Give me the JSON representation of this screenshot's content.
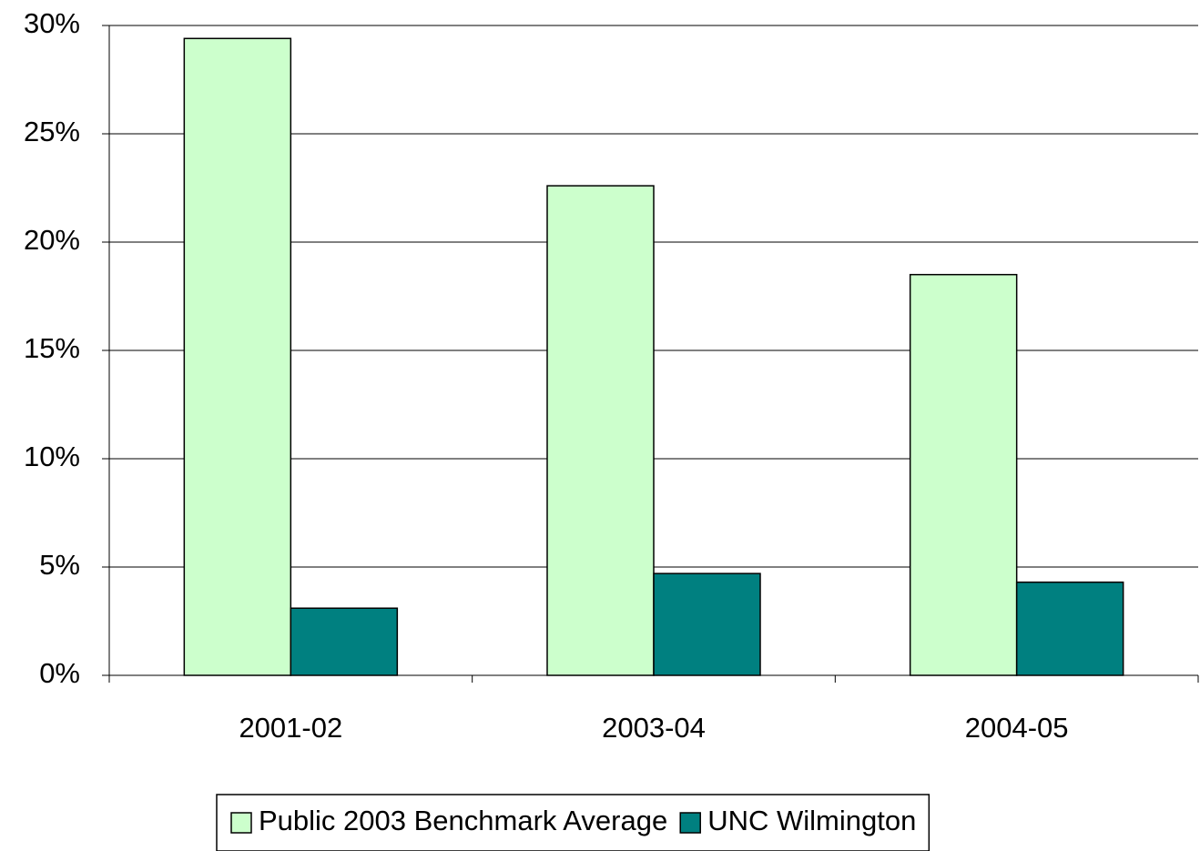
{
  "chart_data": {
    "type": "bar",
    "categories": [
      "2001-02",
      "2003-04",
      "2004-05"
    ],
    "series": [
      {
        "name": "Public 2003 Benchmark Average",
        "color": "#ccffcc",
        "values": [
          29.4,
          22.6,
          18.5
        ]
      },
      {
        "name": "UNC Wilmington",
        "color": "#008080",
        "values": [
          3.1,
          4.7,
          4.3
        ]
      }
    ],
    "ylim": [
      0,
      30
    ],
    "yticks": [
      {
        "value": 0,
        "label": "0%"
      },
      {
        "value": 5,
        "label": "5%"
      },
      {
        "value": 10,
        "label": "10%"
      },
      {
        "value": 15,
        "label": "15%"
      },
      {
        "value": 20,
        "label": "20%"
      },
      {
        "value": 25,
        "label": "25%"
      },
      {
        "value": 30,
        "label": "30%"
      }
    ],
    "grid": true,
    "legend": "bottom"
  }
}
